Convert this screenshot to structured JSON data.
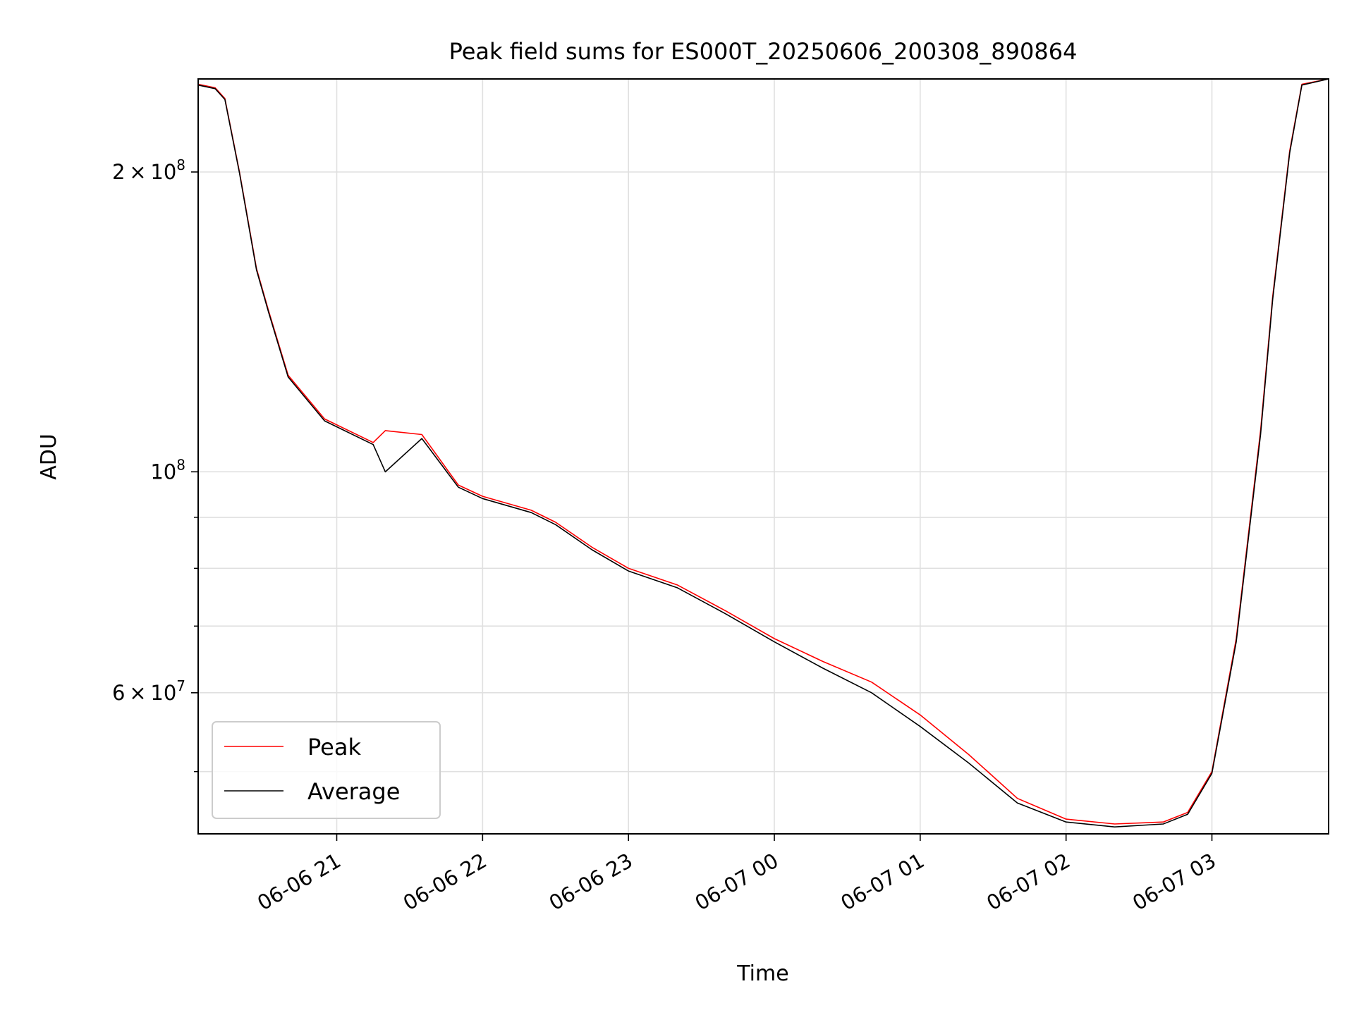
{
  "chart_data": {
    "type": "line",
    "title": "Peak field sums for ES000T_20250606_200308_890864",
    "xlabel": "Time",
    "ylabel": "ADU",
    "yscale": "log",
    "grid": true,
    "legend_position": "lower-left",
    "xlim": [
      "2025-06-06 20:03",
      "2025-06-07 03:48"
    ],
    "ylim": [
      43300000,
      248000000
    ],
    "x_ticks": [
      {
        "value": "2025-06-06 21:00",
        "label": "06-06 21"
      },
      {
        "value": "2025-06-06 22:00",
        "label": "06-06 22"
      },
      {
        "value": "2025-06-06 23:00",
        "label": "06-06 23"
      },
      {
        "value": "2025-06-07 00:00",
        "label": "06-07 00"
      },
      {
        "value": "2025-06-07 01:00",
        "label": "06-07 01"
      },
      {
        "value": "2025-06-07 02:00",
        "label": "06-07 02"
      },
      {
        "value": "2025-06-07 03:00",
        "label": "06-07 03"
      }
    ],
    "y_major_ticks": [
      {
        "value": 200000000,
        "base": "2",
        "times": "×",
        "power_base": "10",
        "exp": "8"
      },
      {
        "value": 100000000,
        "base": "",
        "times": "",
        "power_base": "10",
        "exp": "8"
      },
      {
        "value": 60000000,
        "base": "6",
        "times": "×",
        "power_base": "10",
        "exp": "7"
      }
    ],
    "y_minor_ticks": [
      50000000,
      70000000,
      80000000,
      90000000
    ],
    "series": [
      {
        "name": "Peak",
        "color": "#ff0000",
        "points": [
          [
            "2025-06-06 20:03",
            245000000
          ],
          [
            "2025-06-06 20:10",
            243000000
          ],
          [
            "2025-06-06 20:14",
            237000000
          ],
          [
            "2025-06-06 20:20",
            200000000
          ],
          [
            "2025-06-06 20:27",
            160000000
          ],
          [
            "2025-06-06 20:32",
            145000000
          ],
          [
            "2025-06-06 20:40",
            125000000
          ],
          [
            "2025-06-06 20:55",
            113000000
          ],
          [
            "2025-06-06 21:15",
            107000000
          ],
          [
            "2025-06-06 21:20",
            110000000
          ],
          [
            "2025-06-06 21:35",
            109000000
          ],
          [
            "2025-06-06 21:50",
            97000000
          ],
          [
            "2025-06-06 22:00",
            94500000
          ],
          [
            "2025-06-06 22:20",
            91500000
          ],
          [
            "2025-06-06 22:30",
            89000000
          ],
          [
            "2025-06-06 22:45",
            84000000
          ],
          [
            "2025-06-06 23:00",
            80000000
          ],
          [
            "2025-06-06 23:20",
            77000000
          ],
          [
            "2025-06-06 23:40",
            72500000
          ],
          [
            "2025-06-07 00:00",
            68000000
          ],
          [
            "2025-06-07 00:20",
            64500000
          ],
          [
            "2025-06-07 00:40",
            61500000
          ],
          [
            "2025-06-07 01:00",
            57000000
          ],
          [
            "2025-06-07 01:20",
            52000000
          ],
          [
            "2025-06-07 01:40",
            47000000
          ],
          [
            "2025-06-07 02:00",
            44800000
          ],
          [
            "2025-06-07 02:20",
            44300000
          ],
          [
            "2025-06-07 02:40",
            44500000
          ],
          [
            "2025-06-07 02:50",
            45500000
          ],
          [
            "2025-06-07 03:00",
            50000000
          ],
          [
            "2025-06-07 03:10",
            68000000
          ],
          [
            "2025-06-07 03:20",
            110000000
          ],
          [
            "2025-06-07 03:25",
            150000000
          ],
          [
            "2025-06-07 03:32",
            210000000
          ],
          [
            "2025-06-07 03:37",
            245000000
          ],
          [
            "2025-06-07 03:48",
            248000000
          ]
        ]
      },
      {
        "name": "Average",
        "color": "#000000",
        "points": [
          [
            "2025-06-06 20:03",
            244500000
          ],
          [
            "2025-06-06 20:10",
            242500000
          ],
          [
            "2025-06-06 20:14",
            236500000
          ],
          [
            "2025-06-06 20:20",
            199500000
          ],
          [
            "2025-06-06 20:27",
            159500000
          ],
          [
            "2025-06-06 20:32",
            144500000
          ],
          [
            "2025-06-06 20:40",
            124500000
          ],
          [
            "2025-06-06 20:55",
            112500000
          ],
          [
            "2025-06-06 21:15",
            106500000
          ],
          [
            "2025-06-06 21:20",
            100000000
          ],
          [
            "2025-06-06 21:35",
            108000000
          ],
          [
            "2025-06-06 21:50",
            96500000
          ],
          [
            "2025-06-06 22:00",
            94000000
          ],
          [
            "2025-06-06 22:20",
            91000000
          ],
          [
            "2025-06-06 22:30",
            88500000
          ],
          [
            "2025-06-06 22:45",
            83500000
          ],
          [
            "2025-06-06 23:00",
            79500000
          ],
          [
            "2025-06-06 23:20",
            76500000
          ],
          [
            "2025-06-06 23:40",
            72000000
          ],
          [
            "2025-06-07 00:00",
            67500000
          ],
          [
            "2025-06-07 00:20",
            63500000
          ],
          [
            "2025-06-07 00:40",
            60000000
          ],
          [
            "2025-06-07 01:00",
            55500000
          ],
          [
            "2025-06-07 01:20",
            51000000
          ],
          [
            "2025-06-07 01:40",
            46500000
          ],
          [
            "2025-06-07 02:00",
            44500000
          ],
          [
            "2025-06-07 02:20",
            44000000
          ],
          [
            "2025-06-07 02:40",
            44300000
          ],
          [
            "2025-06-07 02:50",
            45300000
          ],
          [
            "2025-06-07 03:00",
            49800000
          ],
          [
            "2025-06-07 03:10",
            67500000
          ],
          [
            "2025-06-07 03:20",
            109000000
          ],
          [
            "2025-06-07 03:25",
            149000000
          ],
          [
            "2025-06-07 03:32",
            209000000
          ],
          [
            "2025-06-07 03:37",
            244500000
          ],
          [
            "2025-06-07 03:48",
            248000000
          ]
        ]
      }
    ]
  }
}
